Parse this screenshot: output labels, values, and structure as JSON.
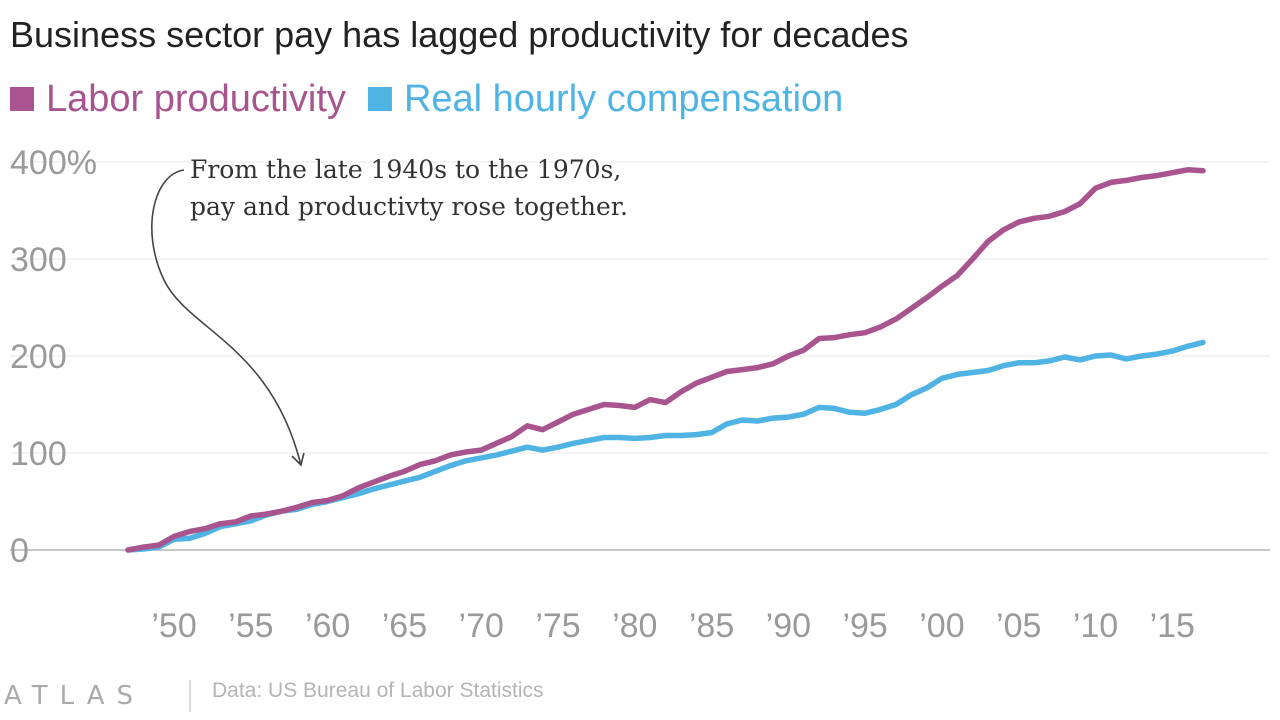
{
  "chart_data": {
    "type": "line",
    "title": "Business sector pay has lagged productivity for decades",
    "ylim": [
      0,
      400
    ],
    "yticks": [
      "0",
      "100",
      "200",
      "300",
      "400%"
    ],
    "ytick_values": [
      0,
      100,
      200,
      300,
      400
    ],
    "xlim": [
      1947,
      2017
    ],
    "xticks": [
      "’50",
      "’55",
      "’60",
      "’65",
      "’70",
      "’75",
      "’80",
      "’85",
      "’90",
      "’95",
      "’00",
      "’05",
      "’10",
      "’15"
    ],
    "xtick_values": [
      1950,
      1955,
      1960,
      1965,
      1970,
      1975,
      1980,
      1985,
      1990,
      1995,
      2000,
      2005,
      2010,
      2015
    ],
    "grid": true,
    "legend_position": "top-left",
    "annotation": {
      "lines": [
        "From the late 1940s to the 1970s,",
        "pay and productivty rose together."
      ],
      "points_to": [
        1958,
        100
      ]
    },
    "series": [
      {
        "name": "Labor productivity",
        "color": "#a8548e",
        "x": [
          1947,
          1948,
          1949,
          1950,
          1951,
          1952,
          1953,
          1954,
          1955,
          1956,
          1957,
          1958,
          1959,
          1960,
          1961,
          1962,
          1963,
          1964,
          1965,
          1966,
          1967,
          1968,
          1969,
          1970,
          1971,
          1972,
          1973,
          1974,
          1975,
          1976,
          1977,
          1978,
          1979,
          1980,
          1981,
          1982,
          1983,
          1984,
          1985,
          1986,
          1987,
          1988,
          1989,
          1990,
          1991,
          1992,
          1993,
          1994,
          1995,
          1996,
          1997,
          1998,
          1999,
          2000,
          2001,
          2002,
          2003,
          2004,
          2005,
          2006,
          2007,
          2008,
          2009,
          2010,
          2011,
          2012,
          2013,
          2014,
          2015,
          2016,
          2017
        ],
        "values": [
          0,
          3,
          5,
          14,
          19,
          22,
          27,
          29,
          35,
          37,
          40,
          44,
          49,
          51,
          56,
          64,
          70,
          76,
          81,
          88,
          92,
          98,
          101,
          103,
          110,
          117,
          128,
          124,
          132,
          140,
          145,
          150,
          149,
          147,
          155,
          152,
          163,
          172,
          178,
          184,
          186,
          188,
          192,
          200,
          206,
          218,
          219,
          222,
          224,
          230,
          238,
          249,
          260,
          272,
          283,
          300,
          318,
          330,
          338,
          342,
          344,
          349,
          357,
          373,
          379,
          381,
          384,
          386,
          389,
          392,
          391
        ]
      },
      {
        "name": "Real hourly compensation",
        "color": "#4fb3e4",
        "x": [
          1947,
          1948,
          1949,
          1950,
          1951,
          1952,
          1953,
          1954,
          1955,
          1956,
          1957,
          1958,
          1959,
          1960,
          1961,
          1962,
          1963,
          1964,
          1965,
          1966,
          1967,
          1968,
          1969,
          1970,
          1971,
          1972,
          1973,
          1974,
          1975,
          1976,
          1977,
          1978,
          1979,
          1980,
          1981,
          1982,
          1983,
          1984,
          1985,
          1986,
          1987,
          1988,
          1989,
          1990,
          1991,
          1992,
          1993,
          1994,
          1995,
          1996,
          1997,
          1998,
          1999,
          2000,
          2001,
          2002,
          2003,
          2004,
          2005,
          2006,
          2007,
          2008,
          2009,
          2010,
          2011,
          2012,
          2013,
          2014,
          2015,
          2016,
          2017
        ],
        "values": [
          0,
          1,
          3,
          11,
          12,
          17,
          24,
          27,
          30,
          36,
          40,
          42,
          47,
          50,
          54,
          58,
          63,
          67,
          71,
          75,
          81,
          87,
          92,
          95,
          98,
          102,
          106,
          103,
          106,
          110,
          113,
          116,
          116,
          115,
          116,
          118,
          118,
          119,
          121,
          130,
          134,
          133,
          136,
          137,
          140,
          147,
          146,
          142,
          141,
          145,
          150,
          160,
          167,
          177,
          181,
          183,
          185,
          190,
          193,
          193,
          195,
          199,
          196,
          200,
          201,
          197,
          200,
          202,
          205,
          210,
          214
        ]
      }
    ]
  },
  "footer": {
    "brand": "ATLAS",
    "source": "Data: US Bureau of Labor Statistics"
  }
}
